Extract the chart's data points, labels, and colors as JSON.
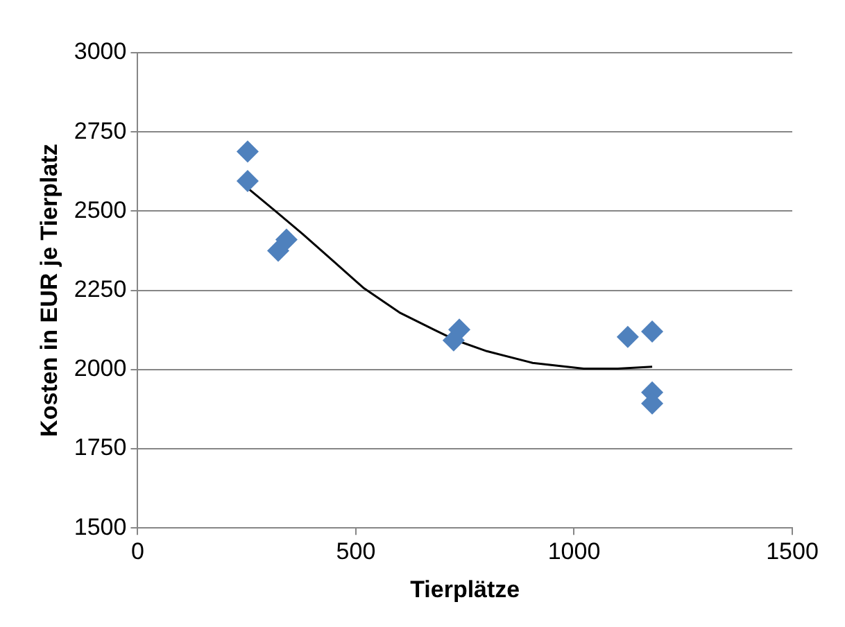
{
  "chart_data": {
    "type": "scatter",
    "xlabel": "Tierplätze",
    "ylabel": "Kosten in EUR je Tierplatz",
    "xlim": [
      0,
      1500
    ],
    "xticks": [
      0,
      500,
      1000,
      1500
    ],
    "ylim": [
      1500,
      3000
    ],
    "yticks": [
      1500,
      1750,
      2000,
      2250,
      2500,
      2750,
      3000
    ],
    "grid": "y",
    "legend": false,
    "marker": "diamond",
    "series": [
      {
        "color": "#4f81bd",
        "x": [
          252,
          252,
          322,
          341,
          724,
          737,
          1123,
          1179,
          1179,
          1179
        ],
        "values": [
          2688,
          2595,
          2375,
          2410,
          2092,
          2126,
          2103,
          2120,
          1928,
          1893
        ]
      },
      {
        "type": "line",
        "color": "#000000",
        "marker": "none",
        "x": [
          252,
          320,
          378,
          450,
          519,
          600,
          680,
          730,
          800,
          905,
          1022,
          1100,
          1179
        ],
        "values": [
          2573,
          2495,
          2428,
          2340,
          2256,
          2180,
          2125,
          2092,
          2058,
          2021,
          2003,
          2003,
          2009
        ]
      }
    ]
  }
}
